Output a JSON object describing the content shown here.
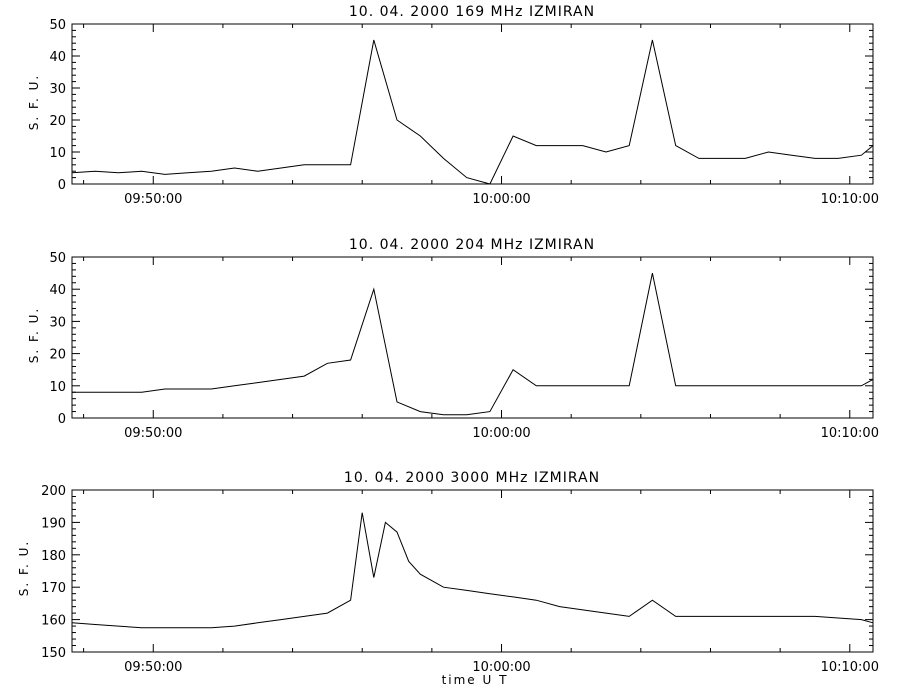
{
  "figure": {
    "xlabel": "time  U T"
  },
  "chart_data": [
    {
      "type": "line",
      "title": "10.  04.  2000    169  MHz    IZMIRAN",
      "xlabel": "",
      "ylabel": "S. F. U.",
      "x_unit": "UT",
      "xlim": [
        "09:47:40",
        "10:10:40"
      ],
      "ylim": [
        0,
        50
      ],
      "yticks": [
        0,
        10,
        20,
        30,
        40,
        50
      ],
      "xticks": [
        "09:50:00",
        "10:00:00",
        "10:10:00"
      ],
      "grid": false,
      "series": [
        {
          "x": [
            "09:47:40",
            "09:48:20",
            "09:49:00",
            "09:49:40",
            "09:50:20",
            "09:51:00",
            "09:51:40",
            "09:52:20",
            "09:53:00",
            "09:53:40",
            "09:54:20",
            "09:55:00",
            "09:55:40",
            "09:56:20",
            "09:57:00",
            "09:57:40",
            "09:58:20",
            "09:59:00",
            "09:59:40",
            "10:00:20",
            "10:01:00",
            "10:01:40",
            "10:02:20",
            "10:03:00",
            "10:03:40",
            "10:04:20",
            "10:05:00",
            "10:05:40",
            "10:06:20",
            "10:07:00",
            "10:07:40",
            "10:08:20",
            "10:09:00",
            "10:09:40",
            "10:10:20",
            "10:10:40"
          ],
          "y": [
            3.5,
            4,
            3.5,
            4,
            3,
            3.5,
            4,
            5,
            4,
            5,
            6,
            6,
            6,
            45,
            20,
            15,
            8,
            2,
            -2,
            15,
            12,
            12,
            12,
            10,
            12,
            45,
            12,
            8,
            8,
            8,
            10,
            9,
            8,
            8,
            9,
            12
          ]
        }
      ]
    },
    {
      "type": "line",
      "title": "10.  04.  2000    204  MHz    IZMIRAN",
      "xlabel": "",
      "ylabel": "S. F. U.",
      "x_unit": "UT",
      "xlim": [
        "09:47:40",
        "10:10:40"
      ],
      "ylim": [
        0,
        50
      ],
      "yticks": [
        0,
        10,
        20,
        30,
        40,
        50
      ],
      "xticks": [
        "09:50:00",
        "10:00:00",
        "10:10:00"
      ],
      "grid": false,
      "series": [
        {
          "x": [
            "09:47:40",
            "09:48:20",
            "09:49:00",
            "09:49:40",
            "09:50:20",
            "09:51:00",
            "09:51:40",
            "09:52:20",
            "09:53:00",
            "09:53:40",
            "09:54:20",
            "09:55:00",
            "09:55:40",
            "09:56:20",
            "09:57:00",
            "09:57:40",
            "09:58:20",
            "09:59:00",
            "09:59:40",
            "10:00:20",
            "10:01:00",
            "10:01:40",
            "10:02:20",
            "10:03:00",
            "10:03:40",
            "10:04:20",
            "10:05:00",
            "10:05:40",
            "10:06:20",
            "10:07:00",
            "10:07:40",
            "10:08:20",
            "10:09:00",
            "10:09:40",
            "10:10:20",
            "10:10:40"
          ],
          "y": [
            8,
            8,
            8,
            8,
            9,
            9,
            9,
            10,
            11,
            12,
            13,
            17,
            18,
            40,
            5,
            2,
            1,
            1,
            2,
            15,
            10,
            10,
            10,
            10,
            10,
            45,
            10,
            10,
            10,
            10,
            10,
            10,
            10,
            10,
            10,
            12
          ]
        }
      ]
    },
    {
      "type": "line",
      "title": "10.  04.  2000    3000  MHz    IZMIRAN",
      "xlabel": "time  U T",
      "ylabel": "S. F. U.",
      "x_unit": "UT",
      "xlim": [
        "09:47:40",
        "10:10:40"
      ],
      "ylim": [
        150,
        200
      ],
      "yticks": [
        150,
        160,
        170,
        180,
        190,
        200
      ],
      "xticks": [
        "09:50:00",
        "10:00:00",
        "10:10:00"
      ],
      "grid": false,
      "series": [
        {
          "x": [
            "09:47:40",
            "09:48:20",
            "09:49:00",
            "09:49:40",
            "09:50:20",
            "09:51:00",
            "09:51:40",
            "09:52:20",
            "09:53:00",
            "09:53:40",
            "09:54:20",
            "09:55:00",
            "09:55:40",
            "09:56:00",
            "09:56:20",
            "09:56:40",
            "09:57:00",
            "09:57:20",
            "09:57:40",
            "09:58:00",
            "09:58:20",
            "09:59:00",
            "09:59:40",
            "10:00:20",
            "10:01:00",
            "10:01:40",
            "10:02:20",
            "10:03:00",
            "10:03:40",
            "10:04:20",
            "10:05:00",
            "10:05:40",
            "10:06:20",
            "10:07:00",
            "10:07:40",
            "10:08:20",
            "10:09:00",
            "10:09:40",
            "10:10:20",
            "10:10:40"
          ],
          "y": [
            159,
            158.5,
            158,
            157.5,
            157.5,
            157.5,
            157.5,
            158,
            159,
            160,
            161,
            162,
            166,
            193,
            173,
            190,
            187,
            178,
            174,
            172,
            170,
            169,
            168,
            167,
            166,
            164,
            163,
            162,
            161,
            166,
            161,
            161,
            161,
            161,
            161,
            161,
            161,
            160.5,
            160,
            159
          ]
        }
      ]
    }
  ]
}
